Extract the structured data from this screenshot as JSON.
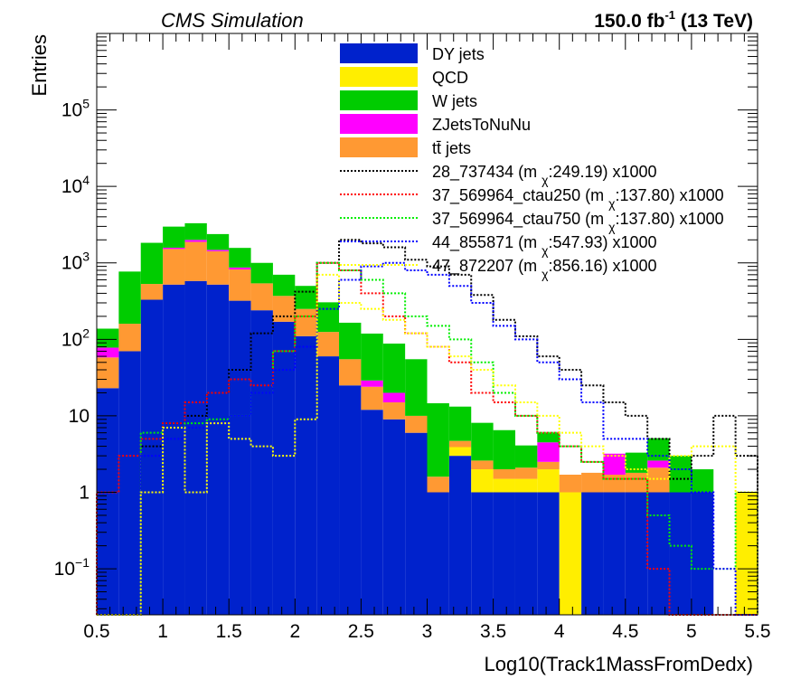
{
  "header": {
    "left_label": "CMS Simulation",
    "right_prefix": "150.0 fb",
    "right_sup": "-1",
    "right_suffix": " (13 TeV)"
  },
  "chart_data": {
    "type": "bar",
    "stacked": true,
    "yscale": "log",
    "xlabel": "Log10(Track1MassFromDedx)",
    "ylabel": "Entries",
    "xlim": [
      0.5,
      5.5
    ],
    "ylim": [
      0.025,
      1000000
    ],
    "x_ticks": [
      "0.5",
      "1",
      "1.5",
      "2",
      "2.5",
      "3",
      "3.5",
      "4",
      "4.5",
      "5",
      "5.5"
    ],
    "y_ticks": [
      {
        "value": 0.1,
        "base": "10",
        "exp": "−1"
      },
      {
        "value": 1,
        "label": "1"
      },
      {
        "value": 10,
        "label": "10"
      },
      {
        "value": 100,
        "base": "10",
        "exp": "2"
      },
      {
        "value": 1000,
        "base": "10",
        "exp": "3"
      },
      {
        "value": 10000,
        "base": "10",
        "exp": "4"
      },
      {
        "value": 100000,
        "base": "10",
        "exp": "5"
      }
    ],
    "grid": false,
    "legend_position": "top-center",
    "bins": [
      0.5,
      0.6667,
      0.8333,
      1.0,
      1.1667,
      1.3333,
      1.5,
      1.6667,
      1.8333,
      2.0,
      2.1667,
      2.3333,
      2.5,
      2.6667,
      2.8333,
      3.0,
      3.1667,
      3.3333,
      3.5,
      3.6667,
      3.8333,
      4.0,
      4.1667,
      4.3333,
      4.5,
      4.6667,
      4.8333,
      5.0,
      5.1667,
      5.3333,
      5.5
    ],
    "stack": [
      {
        "name": "DY jets",
        "color": "#0022cc",
        "values": [
          23,
          70,
          330,
          520,
          580,
          520,
          320,
          240,
          170,
          110,
          60,
          25,
          12,
          9,
          6,
          1,
          3,
          1,
          1,
          1,
          1,
          0,
          1,
          1,
          1,
          1,
          1,
          1,
          0,
          0
        ]
      },
      {
        "name": "QCD",
        "color": "#ffee00",
        "values": [
          0,
          0,
          0,
          0,
          0,
          0,
          0,
          0,
          0,
          0,
          0,
          0,
          0,
          0,
          0,
          0,
          0.9,
          1.0,
          0.5,
          0.5,
          1.0,
          1,
          0,
          0,
          0,
          0,
          0,
          0,
          0,
          1
        ]
      },
      {
        "name": "tt̄ jets",
        "color": "#ff9933",
        "values": [
          35,
          90,
          200,
          1000,
          1300,
          900,
          500,
          300,
          200,
          140,
          65,
          30,
          12,
          6,
          4,
          0.6,
          0.8,
          0.6,
          0.5,
          0.6,
          0.5,
          0.7,
          0.8,
          0.7,
          0.8,
          1.1,
          0,
          0,
          0,
          0
        ]
      },
      {
        "name": "ZJetsToNuNu",
        "color": "#ff00ff",
        "values": [
          20,
          0,
          0,
          60,
          120,
          60,
          50,
          0,
          0,
          0,
          0,
          0,
          5,
          5,
          0,
          0,
          0,
          0,
          0,
          0,
          2,
          0,
          0,
          1.5,
          0,
          0.5,
          0,
          0,
          0,
          0
        ]
      },
      {
        "name": "W jets",
        "color": "#00cc00",
        "values": [
          60,
          610,
          1300,
          1400,
          1300,
          900,
          700,
          460,
          330,
          250,
          180,
          110,
          90,
          68,
          45,
          13,
          8.5,
          5.5,
          4.5,
          2,
          1.5,
          0,
          0,
          0,
          1.5,
          2.5,
          2,
          1,
          0,
          0
        ]
      }
    ],
    "signals": [
      {
        "name": "28_737434 (m_χ:249.19) x1000",
        "color": "#000000",
        "values": [
          0,
          0,
          4,
          8,
          10,
          20,
          40,
          120,
          200,
          420,
          1000,
          2000,
          1800,
          1600,
          1100,
          900,
          700,
          380,
          180,
          110,
          60,
          40,
          25,
          15,
          10,
          5,
          1.5,
          3,
          10,
          3
        ]
      },
      {
        "name": "37_569964_ctau250 (m_χ:137.80) x1000",
        "color": "#ff0000",
        "values": [
          1,
          3,
          5,
          8,
          15,
          20,
          30,
          25,
          70,
          200,
          1000,
          800,
          400,
          200,
          120,
          80,
          50,
          20,
          15,
          10,
          6,
          4,
          2.5,
          1.5,
          1.5,
          0.1,
          0,
          0,
          0,
          0
        ]
      },
      {
        "name": "37_569964_ctau750 (m_χ:137.80) x1000",
        "color": "#00ee00",
        "values": [
          0,
          0,
          6,
          7,
          8,
          9,
          10,
          20,
          70,
          200,
          1000,
          800,
          600,
          400,
          200,
          150,
          100,
          50,
          20,
          10,
          6,
          4,
          2.5,
          1.5,
          1.5,
          0.5,
          0.2,
          0.1,
          0.1,
          1
        ]
      },
      {
        "name": "44_855871 (m_χ:547.93) x1000",
        "color": "#0000ff",
        "values": [
          0,
          0,
          3,
          5,
          7,
          8,
          10,
          20,
          40,
          80,
          250,
          600,
          900,
          1000,
          800,
          700,
          500,
          300,
          150,
          100,
          50,
          30,
          15,
          5,
          5,
          3,
          2,
          1,
          0.1,
          0
        ]
      },
      {
        "name": "47_872207 (m_χ:856.16) x1000",
        "color": "#ffff00",
        "values": [
          0,
          0,
          1,
          7,
          1,
          8,
          5,
          4,
          3,
          9,
          700,
          300,
          250,
          180,
          120,
          80,
          60,
          40,
          25,
          15,
          10,
          6,
          4,
          3,
          2,
          1.5,
          3,
          4,
          4,
          1
        ]
      }
    ]
  }
}
